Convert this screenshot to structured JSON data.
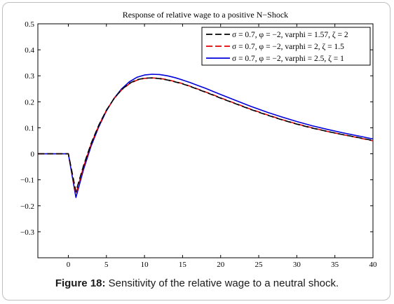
{
  "chart_data": {
    "type": "line",
    "title": "Response of relative wage to a positive N−Shock",
    "xlabel": "",
    "ylabel": "",
    "xlim": [
      -4,
      40
    ],
    "ylim": [
      -0.4,
      0.5
    ],
    "xticks": [
      0,
      5,
      10,
      15,
      20,
      25,
      30,
      35,
      40
    ],
    "xtick_labels": [
      "0",
      "5",
      "10",
      "15",
      "20",
      "25",
      "30",
      "35",
      "40"
    ],
    "yticks": [
      -0.3,
      -0.2,
      -0.1,
      0,
      0.1,
      0.2,
      0.3,
      0.4,
      0.5
    ],
    "ytick_labels": [
      "−0.3",
      "−0.2",
      "−0.1",
      "0",
      "0.1",
      "0.2",
      "0.3",
      "0.4",
      "0.5"
    ],
    "grid": false,
    "legend_position": "top-right",
    "series": [
      {
        "name": "σ = 0.7, φ = −2, varphi = 1.57, ζ = 2",
        "color": "#000000",
        "dash": "dashed",
        "x": [
          -4,
          0,
          1,
          2,
          3,
          4,
          5,
          6,
          7,
          8,
          9,
          10,
          11,
          12,
          13,
          14,
          15,
          16,
          17,
          18,
          19,
          20,
          22,
          24,
          26,
          28,
          30,
          32,
          34,
          36,
          38,
          40
        ],
        "y": [
          0,
          0,
          -0.145,
          -0.045,
          0.04,
          0.11,
          0.168,
          0.212,
          0.247,
          0.271,
          0.285,
          0.291,
          0.292,
          0.289,
          0.284,
          0.277,
          0.269,
          0.259,
          0.248,
          0.237,
          0.226,
          0.214,
          0.192,
          0.17,
          0.15,
          0.131,
          0.114,
          0.099,
          0.086,
          0.074,
          0.063,
          0.051
        ]
      },
      {
        "name": "σ = 0.7, φ = −2, varphi = 2, ζ = 1.5",
        "color": "#e00000",
        "dash": "dashed",
        "x": [
          -4,
          0,
          1,
          2,
          3,
          4,
          5,
          6,
          7,
          8,
          9,
          10,
          11,
          12,
          13,
          14,
          15,
          16,
          17,
          18,
          19,
          20,
          22,
          24,
          26,
          28,
          30,
          32,
          34,
          36,
          38,
          40
        ],
        "y": [
          0,
          0,
          -0.155,
          -0.05,
          0.037,
          0.108,
          0.167,
          0.212,
          0.246,
          0.269,
          0.283,
          0.29,
          0.292,
          0.29,
          0.285,
          0.278,
          0.27,
          0.26,
          0.249,
          0.238,
          0.227,
          0.215,
          0.193,
          0.171,
          0.151,
          0.132,
          0.115,
          0.1,
          0.086,
          0.074,
          0.062,
          0.05
        ]
      },
      {
        "name": "σ = 0.7, φ = −2, varphi = 2.5, ζ = 1",
        "color": "#0000dd",
        "dash": "solid",
        "x": [
          -4,
          0,
          1,
          2,
          3,
          4,
          5,
          6,
          7,
          8,
          9,
          10,
          11,
          12,
          13,
          14,
          15,
          16,
          17,
          18,
          19,
          20,
          22,
          24,
          26,
          28,
          30,
          32,
          34,
          36,
          38,
          40
        ],
        "y": [
          0,
          0,
          -0.168,
          -0.06,
          0.03,
          0.104,
          0.165,
          0.213,
          0.25,
          0.277,
          0.294,
          0.303,
          0.306,
          0.305,
          0.3,
          0.293,
          0.284,
          0.274,
          0.263,
          0.252,
          0.24,
          0.228,
          0.205,
          0.182,
          0.161,
          0.142,
          0.124,
          0.108,
          0.094,
          0.081,
          0.069,
          0.057
        ]
      }
    ]
  },
  "caption": {
    "label": "Figure 18:",
    "text": " Sensitivity of the relative wage to a neutral shock."
  }
}
